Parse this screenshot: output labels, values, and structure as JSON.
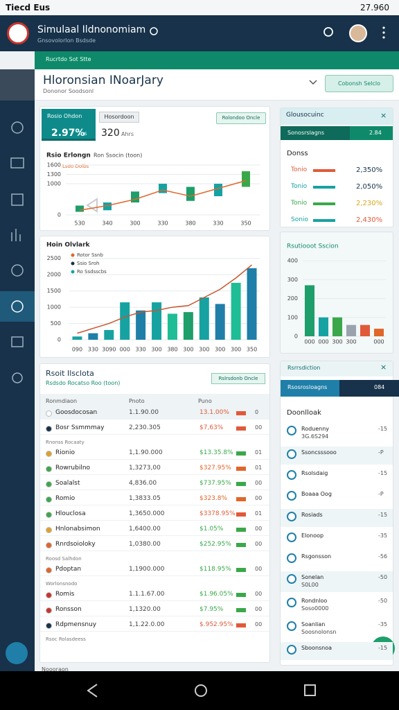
{
  "status_bar": {
    "left": "Tiecd Eus",
    "time": "27.960"
  },
  "app_bar": {
    "title": "Simulaal Ildnonomiam",
    "subtitle": "Gnsovolorlon Bsdsde"
  },
  "banner": "Rucrtdo Sot Stte",
  "header": {
    "title": "Hloronsian INoarJary",
    "subtitle": "Dononor Soodsonl",
    "button": "Cobonsh Selclo"
  },
  "ratio_card": {
    "tab_active": "Rosio Ohdon",
    "tab_active_value": "2.97%",
    "tab_active_unit": "Ins",
    "tab_other": "Hosordoon",
    "tab_other_value": "320",
    "tab_other_unit": "Ahrs",
    "button": "Rolondoo Oncle",
    "chart": {
      "type": "candlestick",
      "title": "Rsio Erlongn",
      "subtitle": "Ron Ssocin (toon)",
      "legend": "Lsdo Dolbs",
      "categories": [
        "530",
        "340",
        "300",
        "330",
        "380",
        "330",
        "350"
      ],
      "open": [
        100,
        150,
        400,
        700,
        450,
        600,
        900
      ],
      "close": [
        300,
        400,
        750,
        1000,
        900,
        1000,
        1400
      ],
      "colors": [
        "#1e9e6a",
        "#17a2a2",
        "#1e9e6a",
        "#17a2a2",
        "#1e9e6a",
        "#17a2a2",
        "#3aa84a"
      ],
      "line": [
        150,
        300,
        500,
        800,
        600,
        850,
        1100
      ],
      "line_color": "#e0662a",
      "ylim": [
        0,
        1600
      ],
      "yticks": [
        0,
        1000,
        1300,
        1600
      ]
    }
  },
  "volume_card": {
    "chart": {
      "type": "bar",
      "title": "Hoin Olvlark",
      "legend": [
        "Rotor Ssnb",
        "Ssio Sroh",
        "Ro Ssdsscbs"
      ],
      "legend_colors": [
        "#e0662a",
        "#17324a",
        "#17a2a2"
      ],
      "categories": [
        "090",
        "330",
        "3090",
        "000",
        "330",
        "300",
        "380",
        "300",
        "300",
        "300",
        "300",
        "350"
      ],
      "values": [
        100,
        200,
        300,
        1150,
        900,
        1150,
        800,
        850,
        1300,
        1100,
        1750,
        2200
      ],
      "colors": [
        "#17a2a2",
        "#1f7fa8",
        "#17a2a2",
        "#17a2a2",
        "#1f7fa8",
        "#17a2a2",
        "#1ebd96",
        "#1e9e6a",
        "#17a2a2",
        "#1f7fa8",
        "#1ebd96",
        "#1f7fa8"
      ],
      "line": [
        200,
        350,
        500,
        700,
        850,
        900,
        1000,
        1050,
        1300,
        1550,
        1900,
        2300
      ],
      "line_color": "#c8552e",
      "ylim": [
        0,
        2600
      ],
      "yticks": [
        0,
        500,
        1000,
        1500,
        2000,
        2500
      ]
    }
  },
  "table_card": {
    "title": "Rsoit Ilsclota",
    "subtitle": "Rsdsdo Rocatso Roo (toon)",
    "button": "Rslrsdonb Oncle",
    "columns": [
      "Ronmdiaon",
      "Pnoto",
      "Puno"
    ],
    "rows": [
      {
        "name": "Goosdocosan",
        "price": "1.1.90.00",
        "change": "13.1.00%",
        "qty": "0",
        "icon": "#ffffff",
        "change_color": "#e05a3a"
      },
      {
        "name": "Bosr Ssmmmay",
        "price": "2,230.305",
        "change": "$7,63%",
        "qty": "00",
        "icon": "#17324a",
        "change_color": "#e05a3a",
        "note": "Rnonss Rocaaty"
      },
      {
        "name": "Rionio",
        "price": "1,1.90.000",
        "change": "$13.35.8%",
        "qty": "01",
        "icon": "#e0a02a",
        "change_color": "#3aa84a"
      },
      {
        "name": "Rowrubilno",
        "price": "1,3273,00",
        "change": "$327.95%",
        "qty": "01",
        "icon": "#3aa84a",
        "change_color": "#e0662a"
      },
      {
        "name": "Soalalst",
        "price": "4,836.00",
        "change": "$737.95%",
        "qty": "00",
        "icon": "#3aa84a",
        "change_color": "#3aa84a"
      },
      {
        "name": "Romio",
        "price": "1,3833.05",
        "change": "$323.8%",
        "qty": "00",
        "icon": "#3aa84a",
        "change_color": "#e0662a"
      },
      {
        "name": "Hlouclosa",
        "price": "1,3650.000",
        "change": "$3378.95%",
        "qty": "01",
        "icon": "#3aa84a",
        "change_color": "#e05a3a"
      },
      {
        "name": "Hnlonabsimon",
        "price": "1,6400.00",
        "change": "$1.05%",
        "qty": "00",
        "icon": "#e0a02a",
        "change_color": "#3aa84a"
      },
      {
        "name": "Rnrdsoioloky",
        "price": "1,0380.00",
        "change": "$252.95%",
        "qty": "00",
        "icon": "#e0662a",
        "change_color": "#3aa84a",
        "note": "Roosd Salhdon"
      },
      {
        "name": "Pdoptan",
        "price": "1,1900.000",
        "change": "$118.95%",
        "qty": "00",
        "icon": "#e0662a",
        "change_color": "#3aa84a",
        "note": "Worlonsnodo"
      },
      {
        "name": "Romis",
        "price": "1.1.1.67.00",
        "change": "$1.96.05%",
        "qty": "00",
        "icon": "#c8352e",
        "change_color": "#3aa84a"
      },
      {
        "name": "Ronsson",
        "price": "1,1320.00",
        "change": "$7.95%",
        "qty": "00",
        "icon": "#c8352e",
        "change_color": "#3aa84a"
      },
      {
        "name": "Rdpmensnuy",
        "price": "1,1.22.0.00",
        "change": "$.952.95%",
        "qty": "00",
        "icon": "#17324a",
        "change_color": "#e05a3a",
        "note": "Rsoc Rolasdeess"
      }
    ],
    "footer": "Noooraon"
  },
  "summary_card": {
    "title": "Glousocuinc",
    "tab": "Sonosrslagns",
    "tab_value": "2.84",
    "section": "Donss",
    "rows": [
      {
        "label": "Tonio",
        "value": "2,350%",
        "color": "#e05a3a",
        "value_color": "#17324a"
      },
      {
        "label": "Tonio",
        "value": "2,050%",
        "color": "#17a2a2",
        "value_color": "#17324a"
      },
      {
        "label": "Tonio",
        "value": "2,230%",
        "color": "#3aa84a",
        "value_color": "#d9a51e"
      },
      {
        "label": "Sonio",
        "value": "2,430%",
        "color": "#17a2a2",
        "value_color": "#e05a3a"
      }
    ]
  },
  "distribution_card": {
    "chart": {
      "type": "bar",
      "title": "Rsutiooot Sscion",
      "categories": [
        "000",
        "000",
        "300",
        "300",
        null,
        "000"
      ],
      "values": [
        270,
        100,
        100,
        60,
        60,
        40
      ],
      "colors": [
        "#1e9e6a",
        "#17a2a2",
        "#3aa84a",
        "#9aa3ad",
        "#e05a3a",
        "#e0662a"
      ],
      "ylim": [
        0,
        400
      ],
      "yticks": [
        0,
        100,
        200,
        300,
        400
      ]
    }
  },
  "activity_card": {
    "title": "Rsrrsdiction",
    "tab": "Rsosrosloagns",
    "tab_value": "084",
    "section": "Doonlloak",
    "items": [
      {
        "label": "Roduenny",
        "sub": "3G.6S294",
        "value": "-15"
      },
      {
        "label": "Ssoncsssooo",
        "value": "-P"
      },
      {
        "label": "Rsolsdaig",
        "value": "-15"
      },
      {
        "label": "Boaaa Oog",
        "value": "-P"
      },
      {
        "label": "Rosiads",
        "value": "-15"
      },
      {
        "label": "Elonoop",
        "value": "-35"
      },
      {
        "label": "Rsgonsson",
        "value": "-56"
      },
      {
        "label": "Sonelan",
        "sub": "S0L00",
        "value": "-50"
      },
      {
        "label": "Rondnloo",
        "sub": "Soso0000",
        "value": "-50"
      },
      {
        "label": "Soanlian",
        "sub": "Soosnolonsn",
        "value": "-35"
      },
      {
        "label": "Sboonsnoa",
        "value": "-15"
      }
    ]
  }
}
